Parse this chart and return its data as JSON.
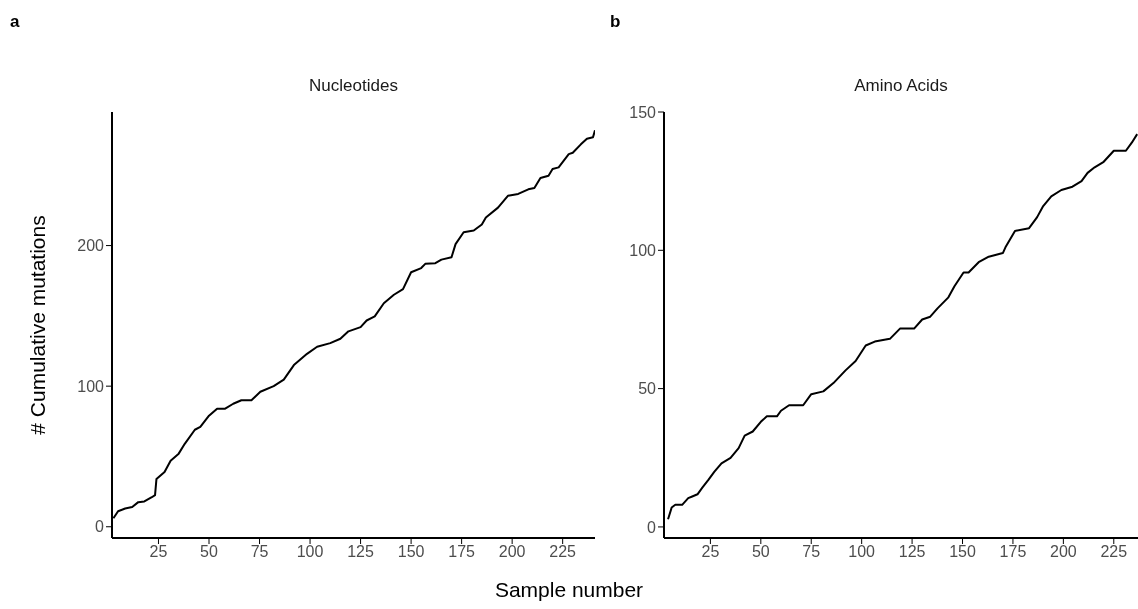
{
  "chart_data": [
    {
      "type": "line",
      "title": "Nucleotides",
      "xlabel": "Sample number",
      "ylabel": "# Cumulative mutations",
      "annotations": [
        "a"
      ],
      "xlim": [
        2,
        241
      ],
      "xticks": [
        25,
        50,
        75,
        100,
        125,
        150,
        175,
        200,
        225
      ],
      "ylim": [
        -8,
        295
      ],
      "yticks": [
        0,
        100,
        200
      ],
      "x": [
        2.7,
        5,
        8.5,
        12,
        15,
        18,
        21.7,
        23.3,
        24,
        28,
        31,
        35,
        38,
        43,
        45.7,
        50,
        54,
        58,
        62,
        66,
        71,
        75.4,
        82,
        87,
        92,
        98.5,
        103.5,
        110,
        115,
        119,
        125,
        128,
        132,
        136.5,
        141.5,
        146,
        150,
        155,
        157,
        162,
        165,
        170,
        172,
        176,
        181,
        185,
        187,
        193,
        198,
        203,
        208,
        211,
        214,
        218,
        220,
        223,
        228,
        230,
        234,
        237,
        240,
        241
      ],
      "series": [
        {
          "color": "#000000",
          "values": [
            6,
            11,
            13,
            14,
            17.5,
            18,
            21,
            22.5,
            34,
            39,
            47,
            52,
            59,
            69,
            71,
            79,
            84,
            84,
            87.5,
            90,
            90,
            96,
            100,
            104.6,
            115,
            123,
            128,
            130.6,
            133.7,
            139,
            142,
            146.7,
            149.6,
            159,
            165,
            169,
            181,
            184,
            187,
            187.5,
            190,
            191.7,
            201,
            209.5,
            210.7,
            215,
            220,
            227,
            235.5,
            236.7,
            240,
            241,
            248,
            249.7,
            254.4,
            255.6,
            265,
            266,
            272,
            276,
            277,
            282
          ]
        }
      ]
    },
    {
      "type": "line",
      "title": "Amino Acids",
      "annotations": [
        "b"
      ],
      "xlim": [
        2,
        237
      ],
      "xticks": [
        25,
        50,
        75,
        100,
        125,
        150,
        175,
        200,
        225
      ],
      "ylim": [
        -4,
        150
      ],
      "yticks": [
        0,
        50,
        100,
        150
      ],
      "x": [
        4,
        5.8,
        7.6,
        11,
        14,
        16,
        18.6,
        21,
        24,
        27,
        30.5,
        35,
        39,
        42,
        46,
        50,
        53,
        58,
        60,
        64,
        71,
        75,
        81,
        86,
        92,
        97,
        102,
        106.5,
        114,
        119,
        126,
        130,
        134,
        137.6,
        143,
        146,
        150.5,
        153,
        158,
        163,
        170,
        171.5,
        176,
        183,
        187,
        190,
        194,
        199,
        204.5,
        209,
        212,
        215.5,
        220,
        225,
        231,
        234,
        236.6
      ],
      "series": [
        {
          "color": "#000000",
          "values": [
            2.8,
            7,
            8,
            8,
            10.4,
            11,
            11.8,
            14.2,
            17,
            20,
            23,
            25,
            28.5,
            33,
            34.5,
            38,
            40,
            40,
            42,
            44,
            44,
            48,
            49,
            52,
            56.6,
            60,
            65.6,
            67,
            68,
            71.7,
            71.7,
            75,
            76,
            79,
            83,
            87,
            92,
            92,
            95.7,
            97.7,
            99,
            101.4,
            107,
            108,
            112,
            116,
            119.5,
            121.8,
            123,
            125,
            128,
            130,
            132,
            136,
            136,
            139,
            142
          ]
        }
      ]
    }
  ]
}
